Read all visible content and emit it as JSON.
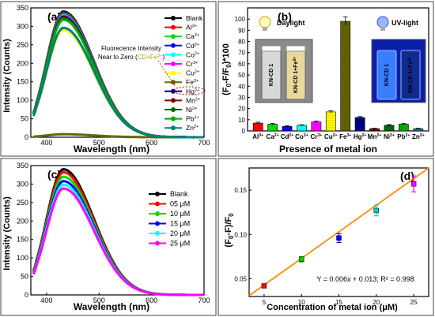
{
  "chart_data": [
    {
      "panel": "(a)",
      "type": "line",
      "xlabel": "Wavelength (nm)",
      "ylabel": "Intensity (Counts)",
      "xlim": [
        370,
        700
      ],
      "ylim": [
        0,
        350
      ],
      "xticks": [
        "400",
        "500",
        "600",
        "700"
      ],
      "yticks": [
        "0",
        "50",
        "100",
        "150",
        "200",
        "250",
        "300",
        "350"
      ],
      "annotation": {
        "line1": "Fluorecence Intensity",
        "line2_prefix": "Near to Zero (",
        "line2_highlight": "CD+Fe",
        "line2_sup": "3+",
        "line2_suffix": ")"
      },
      "series": [
        {
          "name": "Blank",
          "sup": "",
          "color": "#000000",
          "peak": 340
        },
        {
          "name": "Al",
          "sup": "3+",
          "color": "#ff0000",
          "peak": 336
        },
        {
          "name": "Ca",
          "sup": "2+",
          "color": "#00dd00",
          "peak": 334
        },
        {
          "name": "Cd",
          "sup": "2+",
          "color": "#0000ff",
          "peak": 332
        },
        {
          "name": "Co",
          "sup": "2+",
          "color": "#00ffff",
          "peak": 330
        },
        {
          "name": "Cr",
          "sup": "3+",
          "color": "#ff00ff",
          "peak": 328
        },
        {
          "name": "Cu",
          "sup": "2+",
          "color": "#ffff00",
          "peak": 290
        },
        {
          "name": "Fe",
          "sup": "3+",
          "color": "#666600",
          "peak": 8
        },
        {
          "name": "Hg",
          "sup": "2+",
          "color": "#000080",
          "peak": 326
        },
        {
          "name": "Mn",
          "sup": "2+",
          "color": "#800000",
          "peak": 324
        },
        {
          "name": "Ni",
          "sup": "2+",
          "color": "#006600",
          "peak": 322
        },
        {
          "name": "Pb",
          "sup": "2+",
          "color": "#00aa00",
          "peak": 318
        },
        {
          "name": "Zn",
          "sup": "2+",
          "color": "#008080",
          "peak": 296
        }
      ]
    },
    {
      "panel": "(b)",
      "type": "bar",
      "xlabel": "Presence of metal ion",
      "ylabel": "(F0-F/F0)*100",
      "ylim": [
        0,
        110
      ],
      "yticks": [
        "0",
        "10",
        "20",
        "30",
        "40",
        "50",
        "60",
        "70",
        "80",
        "90",
        "100"
      ],
      "categories": [
        {
          "name": "Al",
          "sup": "3+"
        },
        {
          "name": "Ca",
          "sup": "2+"
        },
        {
          "name": "Cd",
          "sup": "2+"
        },
        {
          "name": "Co",
          "sup": "2+"
        },
        {
          "name": "Cr",
          "sup": "3+"
        },
        {
          "name": "Cu",
          "sup": "2+"
        },
        {
          "name": "Fe",
          "sup": "3+"
        },
        {
          "name": "Hg",
          "sup": "2+"
        },
        {
          "name": "Mn",
          "sup": "2+"
        },
        {
          "name": "Ni",
          "sup": "2+"
        },
        {
          "name": "Pb",
          "sup": "2+"
        },
        {
          "name": "Zn",
          "sup": "2+"
        }
      ],
      "values": [
        7,
        6,
        4,
        5,
        8,
        17,
        98,
        12,
        2,
        5,
        6,
        2
      ],
      "errors": [
        0.8,
        0.6,
        0.6,
        0.5,
        0.8,
        1.0,
        4.0,
        0.9,
        0.4,
        0.6,
        0.6,
        0.4
      ],
      "colors": [
        "#ff0000",
        "#00dd00",
        "#0000ff",
        "#00ffff",
        "#ff00ff",
        "#ffff00",
        "#666600",
        "#000080",
        "#800000",
        "#006600",
        "#00aa00",
        "#008080"
      ],
      "inset_left": {
        "label": "Daylight",
        "vial1": "KN-CD 1",
        "vial2": "KN-CD 1+Fe",
        "vial2_sup": "3+"
      },
      "inset_right": {
        "label": "UV-light",
        "vial1": "KN-CD 1",
        "vial2": "KN-CD 1+Fe",
        "vial2_sup": "3+"
      }
    },
    {
      "panel": "(c)",
      "type": "line",
      "xlabel": "Wavelength (nm)",
      "ylabel": "Intensity (Counts)",
      "xlim": [
        370,
        700
      ],
      "ylim": [
        0,
        350
      ],
      "xticks": [
        "400",
        "500",
        "600",
        "700"
      ],
      "yticks": [
        "0",
        "50",
        "100",
        "150",
        "200",
        "250",
        "300",
        "350"
      ],
      "series": [
        {
          "name": "Blank",
          "color": "#000000",
          "peak": 340
        },
        {
          "name": "05 μM",
          "color": "#ff0000",
          "peak": 332
        },
        {
          "name": "10 μM",
          "color": "#00dd00",
          "peak": 320
        },
        {
          "name": "15 μM",
          "color": "#0000ff",
          "peak": 308
        },
        {
          "name": "20 μM",
          "color": "#00ffff",
          "peak": 298
        },
        {
          "name": "25 μM",
          "color": "#ff00ff",
          "peak": 288
        }
      ]
    },
    {
      "panel": "(d)",
      "type": "scatter",
      "xlabel": "Concentration of metal ion (μM)",
      "ylabel": "(F0-F)/F0",
      "xlim": [
        3,
        27
      ],
      "ylim": [
        0.03,
        0.175
      ],
      "xticks": [
        "5",
        "10",
        "15",
        "20",
        "25"
      ],
      "yticks": [
        "0.05",
        "0.10",
        "0.15"
      ],
      "x": [
        5,
        10,
        15,
        20,
        25
      ],
      "y": [
        0.042,
        0.072,
        0.096,
        0.127,
        0.157
      ],
      "errors": [
        0.002,
        0.003,
        0.005,
        0.006,
        0.009
      ],
      "colors": [
        "#ff0000",
        "#00cc00",
        "#0000ff",
        "#00cccc",
        "#ff00ff"
      ],
      "fit": {
        "slope": 0.006,
        "intercept": 0.013,
        "color": "#ff8c00"
      },
      "equation": "Y = 0.006x + 0.013; R² = 0.998"
    }
  ]
}
